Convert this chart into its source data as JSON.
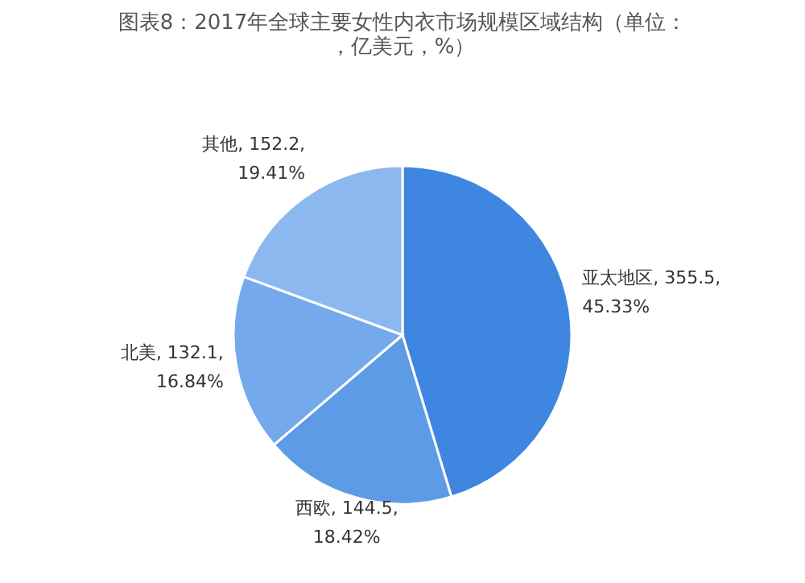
{
  "chart_data": {
    "type": "pie",
    "title": "图表8：2017年全球主要女性内衣市场规模区域结构（单位：，亿美元，%）",
    "categories": [
      "亚太地区",
      "西欧",
      "北美",
      "其他"
    ],
    "values": [
      355.5,
      144.5,
      132.1,
      152.2
    ],
    "value_labels": [
      "355.5,\n45.33%",
      "144.5,\n18.42%",
      "132.1,\n16.84%",
      "152.2,\n19.41%"
    ],
    "colors": [
      "#3f86e0",
      "#5d9be6",
      "#74a9eb",
      "#8cb8f0"
    ]
  }
}
